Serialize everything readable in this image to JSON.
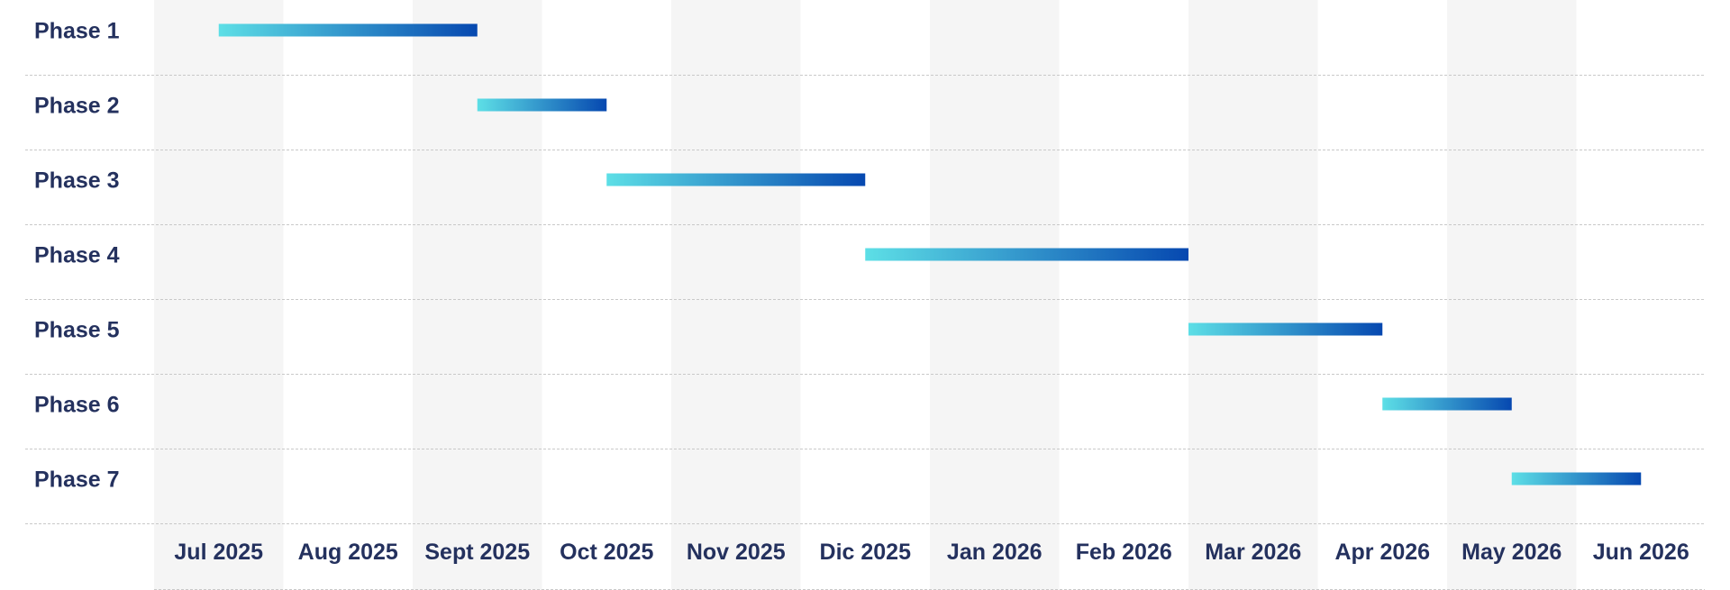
{
  "colors": {
    "column_shade": "#f5f5f5",
    "bar_start": "#5ddfe6",
    "bar_end": "#0648b0",
    "text": "#24315e",
    "grid_line": "#c9c9c9"
  },
  "chart_data": {
    "type": "bar",
    "orientation": "horizontal",
    "title": "",
    "xlabel": "",
    "ylabel": "",
    "months": [
      "Jul 2025",
      "Aug 2025",
      "Sept 2025",
      "Oct 2025",
      "Nov 2025",
      "Dic 2025",
      "Jan 2026",
      "Feb 2026",
      "Mar 2026",
      "Apr 2026",
      "May 2026",
      "Jun 2026"
    ],
    "xlim": [
      "2025-06-16",
      "2026-06-16"
    ],
    "grid": "horizontal dashed lines between rows; alternating shaded month columns",
    "legend": "none",
    "tasks": [
      {
        "label": "Phase 1",
        "start": "2025-07-01",
        "end": "2025-09-01"
      },
      {
        "label": "Phase 2",
        "start": "2025-09-01",
        "end": "2025-10-01"
      },
      {
        "label": "Phase 3",
        "start": "2025-10-01",
        "end": "2025-12-01"
      },
      {
        "label": "Phase 4",
        "start": "2025-12-01",
        "end": "2026-02-15"
      },
      {
        "label": "Phase 5",
        "start": "2026-02-15",
        "end": "2026-04-01"
      },
      {
        "label": "Phase 6",
        "start": "2026-04-01",
        "end": "2026-05-01"
      },
      {
        "label": "Phase 7",
        "start": "2026-05-01",
        "end": "2026-06-01"
      }
    ]
  }
}
